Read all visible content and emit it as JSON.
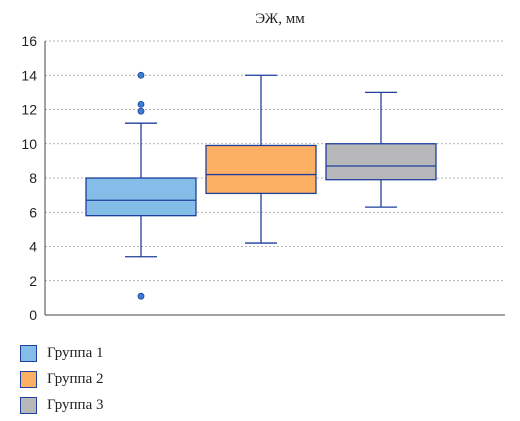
{
  "chart_data": {
    "type": "box",
    "title": "ЭЖ, мм",
    "ylim": [
      0,
      16
    ],
    "yticks": [
      0,
      2,
      4,
      6,
      8,
      10,
      12,
      14,
      16
    ],
    "grid": "horizontal dashed",
    "legend_position": "bottom-left",
    "series": [
      {
        "name": "Группа 1",
        "color": "#85bde9",
        "whisker_low": 3.4,
        "q1": 5.8,
        "median": 6.7,
        "q3": 8.0,
        "whisker_high": 11.2,
        "outliers": [
          14.0,
          12.3,
          11.9,
          1.1
        ]
      },
      {
        "name": "Группа 2",
        "color": "#fbb064",
        "whisker_low": 4.2,
        "q1": 7.1,
        "median": 8.2,
        "q3": 9.9,
        "whisker_high": 14.0,
        "outliers": []
      },
      {
        "name": "Группа 3",
        "color": "#b8b8bb",
        "whisker_low": 6.3,
        "q1": 7.9,
        "median": 8.7,
        "q3": 10.0,
        "whisker_high": 13.0,
        "outliers": []
      }
    ]
  }
}
